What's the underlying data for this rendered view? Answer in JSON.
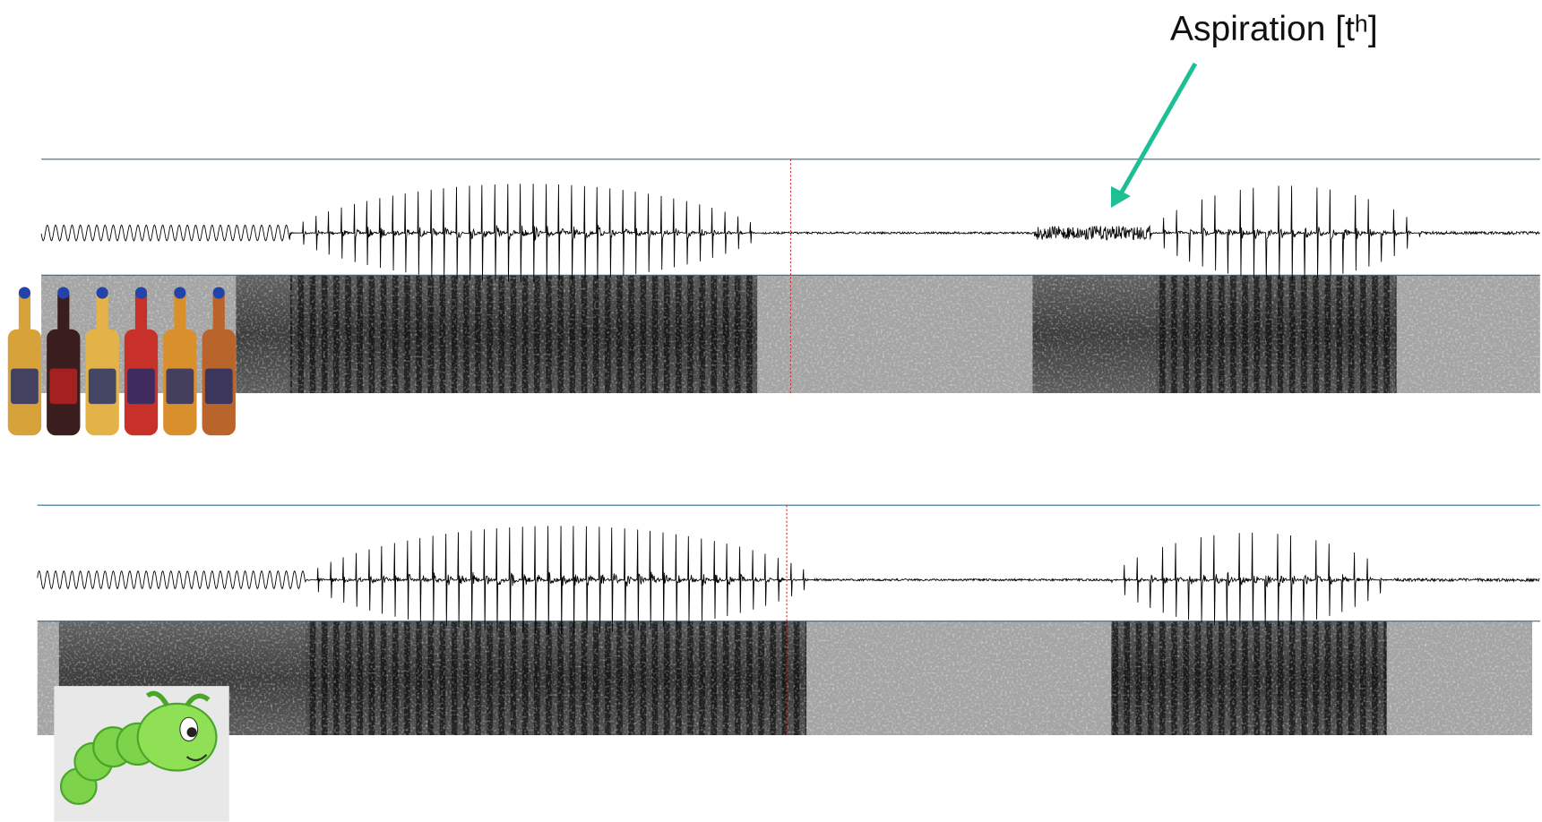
{
  "annotation": {
    "label": "Aspiration [tʰ]"
  }
}
